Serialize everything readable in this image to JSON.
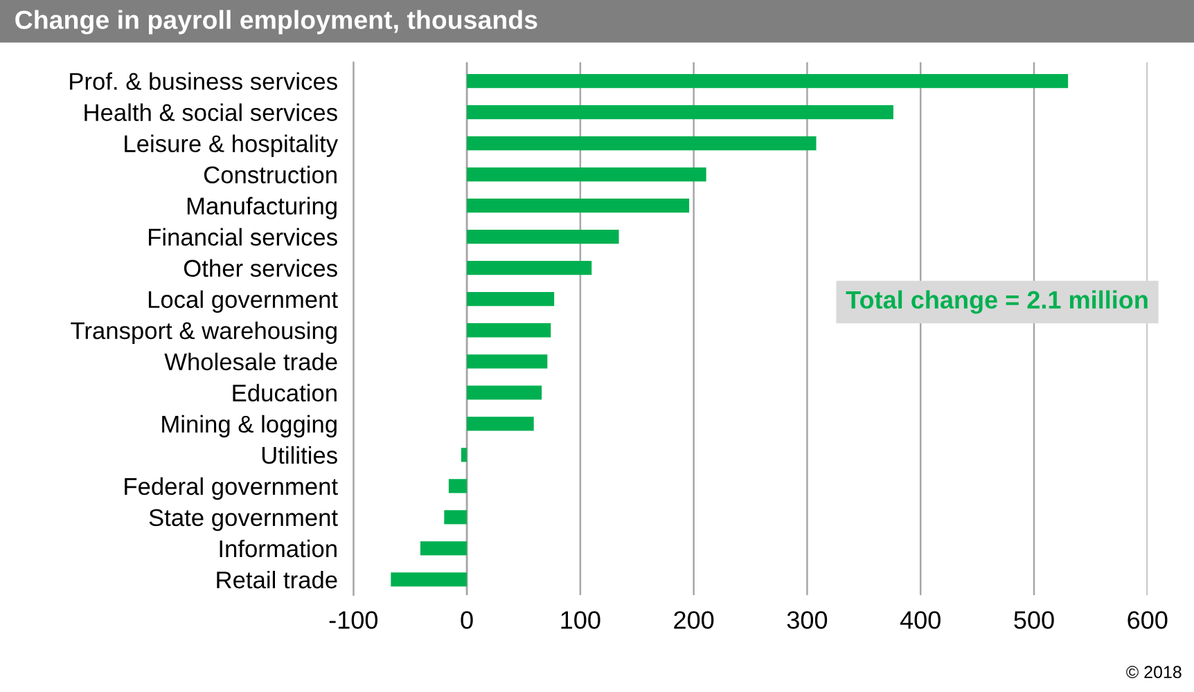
{
  "chart_data": {
    "type": "bar",
    "orientation": "horizontal",
    "title": "Change in payroll employment, thousands",
    "categories": [
      "Prof. & business services",
      "Health & social services",
      "Leisure & hospitality",
      "Construction",
      "Manufacturing",
      "Financial services",
      "Other services",
      "Local government",
      "Transport & warehousing",
      "Wholesale trade",
      "Education",
      "Mining & logging",
      "Utilities",
      "Federal government",
      "State government",
      "Information",
      "Retail trade"
    ],
    "values": [
      530,
      376,
      308,
      211,
      196,
      134,
      110,
      77,
      74,
      71,
      66,
      59,
      -5,
      -16,
      -20,
      -41,
      -67
    ],
    "color": "#00b050",
    "xlim": [
      -100,
      600
    ],
    "xticks": [
      -100,
      0,
      100,
      200,
      300,
      400,
      500,
      600
    ],
    "grid": "x",
    "annotations": [
      "Total change = 2.1 million",
      "© 2018"
    ]
  }
}
